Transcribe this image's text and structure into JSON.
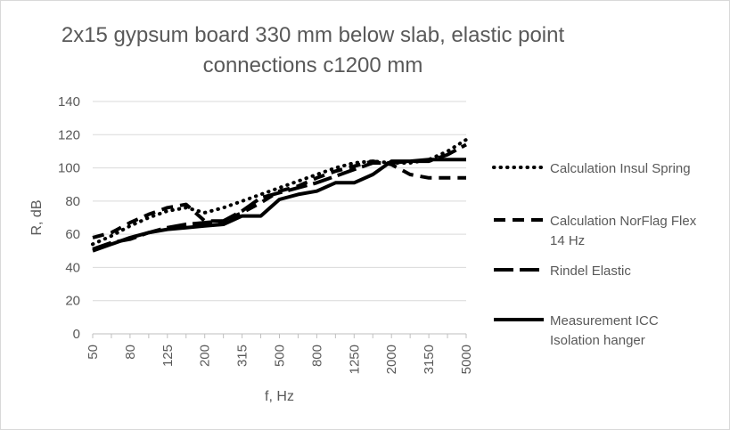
{
  "chart_data": {
    "type": "line",
    "title_lines": [
      "2x15 gypsum board 330 mm below slab, elastic point",
      "connections c1200 mm"
    ],
    "xlabel": "f, Hz",
    "ylabel": "R, dB",
    "ylim": [
      0,
      140
    ],
    "yticks": [
      0,
      20,
      40,
      60,
      80,
      100,
      120,
      140
    ],
    "x": [
      "50",
      "63",
      "80",
      "100",
      "125",
      "160",
      "200",
      "250",
      "315",
      "400",
      "500",
      "630",
      "800",
      "1000",
      "1250",
      "1600",
      "2000",
      "2500",
      "3150",
      "4000",
      "5000"
    ],
    "x_tick_labels": [
      "50",
      "80",
      "125",
      "200",
      "315",
      "500",
      "800",
      "1250",
      "2000",
      "3150",
      "5000"
    ],
    "grid": "horizontal",
    "legend_position": "right",
    "series": [
      {
        "name": "Calculation Insul Spring",
        "style": "dotted",
        "values": [
          54,
          59,
          65,
          70,
          74,
          76,
          73,
          76,
          80,
          84,
          88,
          92,
          96,
          100,
          103,
          104,
          103,
          103,
          105,
          110,
          117
        ]
      },
      {
        "name": "Calculation NorFlag Flex 14 Hz",
        "style": "dashed",
        "values": [
          58,
          61,
          67,
          72,
          76,
          78,
          68,
          68,
          73,
          79,
          86,
          89,
          94,
          98,
          101,
          104,
          102,
          96,
          94,
          94,
          94
        ]
      },
      {
        "name": "Rindel Elastic",
        "style": "long-dash",
        "values": [
          51,
          55,
          57,
          61,
          64,
          66,
          67,
          68,
          74,
          82,
          85,
          88,
          91,
          95,
          99,
          103,
          103,
          104,
          104,
          108,
          114
        ]
      },
      {
        "name": "Measurement ICC Isolation hanger",
        "style": "solid",
        "values": [
          50,
          54,
          58,
          61,
          63,
          64,
          65,
          66,
          71,
          71,
          81,
          84,
          86,
          91,
          91,
          96,
          104,
          104,
          105,
          105,
          105
        ]
      }
    ],
    "legend_lines": [
      [
        "Calculation Insul Spring"
      ],
      [
        "Calculation NorFlag Flex",
        "14 Hz"
      ],
      [
        "Rindel Elastic"
      ],
      [
        "Measurement ICC",
        "Isolation hanger"
      ]
    ]
  },
  "colors": {
    "series": "#000000",
    "grid": "#d9d9d9",
    "axis": "#bfbfbf",
    "text": "#595959"
  }
}
